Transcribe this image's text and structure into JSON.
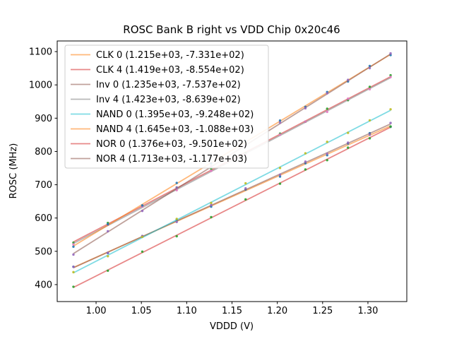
{
  "window": {
    "title": "ROSC Bank B right vs VDD Chip 0x20c46"
  },
  "chart_data": {
    "type": "scatter",
    "title": "ROSC Bank B right vs VDD Chip 0x20c46",
    "xlabel": "VDDD (V)",
    "ylabel": "ROSC (MHz)",
    "xlim": [
      0.9571,
      1.3429
    ],
    "ylim": [
      349,
      1132
    ],
    "grid": false,
    "legend_position": "upper left",
    "xticks": [
      {
        "value": 1.0,
        "label": "1.00"
      },
      {
        "value": 1.05,
        "label": "1.05"
      },
      {
        "value": 1.1,
        "label": "1.10"
      },
      {
        "value": 1.15,
        "label": "1.15"
      },
      {
        "value": 1.2,
        "label": "1.20"
      },
      {
        "value": 1.25,
        "label": "1.25"
      },
      {
        "value": 1.3,
        "label": "1.30"
      }
    ],
    "yticks": [
      {
        "value": 400,
        "label": "400"
      },
      {
        "value": 500,
        "label": "500"
      },
      {
        "value": 600,
        "label": "600"
      },
      {
        "value": 700,
        "label": "700"
      },
      {
        "value": 800,
        "label": "800"
      },
      {
        "value": 900,
        "label": "900"
      },
      {
        "value": 1000,
        "label": "1000"
      },
      {
        "value": 1100,
        "label": "1100"
      }
    ],
    "x_points": [
      0.975,
      1.013,
      1.051,
      1.089,
      1.127,
      1.165,
      1.203,
      1.231,
      1.255,
      1.278,
      1.302,
      1.325
    ],
    "fit_x_range": [
      0.975,
      1.325
    ],
    "series": [
      {
        "name": "CLK 0",
        "legend_label": "CLK 0 (1.215e+03, -7.331e+02)",
        "slope": 1215,
        "intercept": -733.1,
        "dot_color": "#1f77b4",
        "line_color": "#ff7f0e",
        "y": [
          453.5,
          494.7,
          544.9,
          594.0,
          634.2,
          685.4,
          724.6,
          764.6,
          788.7,
          823.7,
          854.8,
          873.8
        ]
      },
      {
        "name": "CLK 4",
        "legend_label": "CLK 4 (1.419e+03, -8.554e+02)",
        "slope": 1419,
        "intercept": -855.4,
        "dot_color": "#2ca02c",
        "line_color": "#d62728",
        "y": [
          526.1,
          585.1,
          635.0,
          691.9,
          747.8,
          794.7,
          853.7,
          889.4,
          928.5,
          954.1,
          994.1,
          1028.8
        ]
      },
      {
        "name": "Inv 0",
        "legend_label": "Inv 0 (1.235e+03, -7.537e+02)",
        "slope": 1235,
        "intercept": -753.7,
        "dot_color": "#9467bd",
        "line_color": "#8c564b",
        "y": [
          453.4,
          495.4,
          546.3,
          588.2,
          639.2,
          689.1,
          730.0,
          769.6,
          793.2,
          826.6,
          850.3,
          885.7
        ]
      },
      {
        "name": "Inv 4",
        "legend_label": "Inv 4 (1.423e+03, -8.639e+02)",
        "slope": 1423,
        "intercept": -863.9,
        "dot_color": "#e377c2",
        "line_color": "#7f7f7f",
        "y": [
          520.5,
          579.6,
          634.7,
          683.7,
          741.8,
          789.9,
          851.0,
          889.8,
          919.0,
          958.7,
          986.9,
          1023.6
        ]
      },
      {
        "name": "NAND 0",
        "legend_label": "NAND 0 (1.395e+03, -9.248e+02)",
        "slope": 1395,
        "intercept": -924.8,
        "dot_color": "#bcbd22",
        "line_color": "#17becf",
        "y": [
          437.3,
          485.3,
          543.3,
          597.4,
          645.4,
          704.4,
          750.4,
          794.4,
          828.9,
          856.0,
          893.5,
          926.6
        ]
      },
      {
        "name": "NAND 4",
        "legend_label": "NAND 4 (1.645e+03, -1.088e+03)",
        "slope": 1645,
        "intercept": -1088,
        "dot_color": "#1f77b4",
        "line_color": "#ff7f0e",
        "y": [
          513.9,
          581.4,
          637.9,
          705.4,
          763.9,
          831.4,
          892.9,
          934.0,
          978.5,
          1010.3,
          1056.8,
          1089.6
        ]
      },
      {
        "name": "NOR 0",
        "legend_label": "NOR 0 (1.376e+03, -9.501e+02)",
        "slope": 1376,
        "intercept": -950.1,
        "dot_color": "#2ca02c",
        "line_color": "#d62728",
        "y": [
          393.5,
          441.8,
          499.1,
          545.4,
          602.7,
          655.9,
          703.2,
          745.8,
          773.8,
          811.4,
          839.5,
          875.1
        ]
      },
      {
        "name": "NOR 4",
        "legend_label": "NOR 4 (1.713e+03, -1.177e+03)",
        "slope": 1713,
        "intercept": -1177,
        "dot_color": "#9467bd",
        "line_color": "#8c564b",
        "y": [
          490.2,
          560.3,
          621.4,
          691.5,
          755.6,
          815.7,
          886.7,
          929.7,
          974.8,
          1015.2,
          1050.3,
          1094.7
        ]
      }
    ],
    "style": {
      "line_opacity": 0.55,
      "dot_opacity": 0.9,
      "dot_radius": 1.7,
      "line_width": 1.8,
      "spine_color": "#000000",
      "legend_border_color": "#cccccc",
      "legend_bg_color": "#ffffff"
    }
  }
}
